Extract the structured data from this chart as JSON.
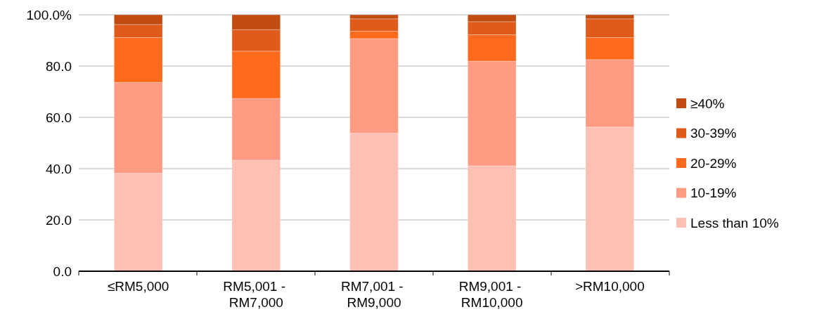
{
  "chart_data": {
    "type": "bar",
    "stacked": true,
    "categories": [
      "≤RM5,000",
      "RM5,001 - RM7,000",
      "RM7,001 - RM9,000",
      "RM9,001 - RM10,000",
      ">RM10,000"
    ],
    "series": [
      {
        "name": "Less than 10%",
        "color": "#ffc0b4",
        "values": [
          38.2,
          43.3,
          53.8,
          41.1,
          56.2
        ]
      },
      {
        "name": "10-19%",
        "color": "#ff9b82",
        "values": [
          35.4,
          24.1,
          36.9,
          40.8,
          26.3
        ]
      },
      {
        "name": "20-29%",
        "color": "#ff6a1c",
        "values": [
          17.5,
          18.4,
          2.9,
          10.3,
          8.6
        ]
      },
      {
        "name": "30-39%",
        "color": "#e05a1a",
        "values": [
          5.1,
          8.4,
          4.8,
          5.1,
          7.3
        ]
      },
      {
        "name": "≥40%",
        "color": "#c04c12",
        "values": [
          3.8,
          5.8,
          1.6,
          2.7,
          1.6
        ]
      }
    ],
    "ylim": [
      0,
      100
    ],
    "yticks": [
      {
        "value": 0,
        "label": "0.0"
      },
      {
        "value": 20,
        "label": "20.0"
      },
      {
        "value": 40,
        "label": "40.0"
      },
      {
        "value": 60,
        "label": "60.0"
      },
      {
        "value": 80,
        "label": "80.0"
      },
      {
        "value": 100,
        "label": "100.0%"
      }
    ],
    "grid": "y",
    "legend": "right"
  }
}
